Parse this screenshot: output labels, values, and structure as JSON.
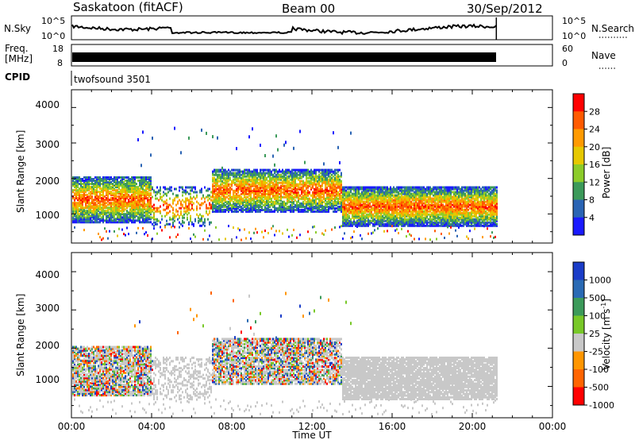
{
  "header": {
    "station": "Saskatoon (fitACF)",
    "beam": "Beam 00",
    "date": "30/Sep/2012"
  },
  "noise_panel": {
    "left_label": "N.Sky",
    "right_label": "N.Search",
    "left_ticks": [
      "10^5",
      "10^0"
    ],
    "right_ticks": [
      "10^5",
      "10^0"
    ]
  },
  "freq_panel": {
    "left_label_line1": "Freq.",
    "left_label_line2": "[MHz]",
    "right_label": "Nave",
    "left_ticks": [
      "18",
      "8"
    ],
    "right_ticks": [
      "60",
      "0"
    ]
  },
  "cpid_panel": {
    "label": "CPID",
    "value": "twofsound 3501"
  },
  "power_panel": {
    "ylabel": "Slant Range [km]",
    "yticks": [
      "4000",
      "3000",
      "2000",
      "1000"
    ],
    "colorbar_label": "Power [dB]",
    "colorbar_ticks": [
      "28",
      "24",
      "20",
      "16",
      "12",
      "8",
      "4"
    ],
    "colorbar_colors": [
      "#ff0000",
      "#ff5a00",
      "#ff9a00",
      "#e6c800",
      "#8ccc2a",
      "#3c9a5a",
      "#2a64b4",
      "#1a1aff"
    ]
  },
  "velocity_panel": {
    "ylabel": "Slant Range [km]",
    "yticks": [
      "4000",
      "3000",
      "2000",
      "1000"
    ],
    "colorbar_label": "Velocity [m s",
    "colorbar_label_sup": "-1",
    "colorbar_label_end": "]",
    "colorbar_ticks": [
      "1000",
      "500",
      "100",
      "25",
      "-25",
      "-100",
      "-500",
      "-1000"
    ],
    "colorbar_colors": [
      "#1a3cc8",
      "#2a6ab4",
      "#3c9a5a",
      "#78c828",
      "#c8c8c8",
      "#ff9600",
      "#ff6400",
      "#ff0000"
    ]
  },
  "xaxis": {
    "label": "Time UT",
    "ticks": [
      "00:00",
      "04:00",
      "08:00",
      "12:00",
      "16:00",
      "20:00",
      "00:00"
    ]
  },
  "chart_data": {
    "type": "heatmap",
    "x_range_hours": [
      0,
      24
    ],
    "data_end_hour": 21.2,
    "y_range_km": [
      180,
      4500
    ],
    "power_range_db": [
      0,
      30
    ],
    "velocity_range_ms": [
      -1000,
      1000
    ]
  }
}
